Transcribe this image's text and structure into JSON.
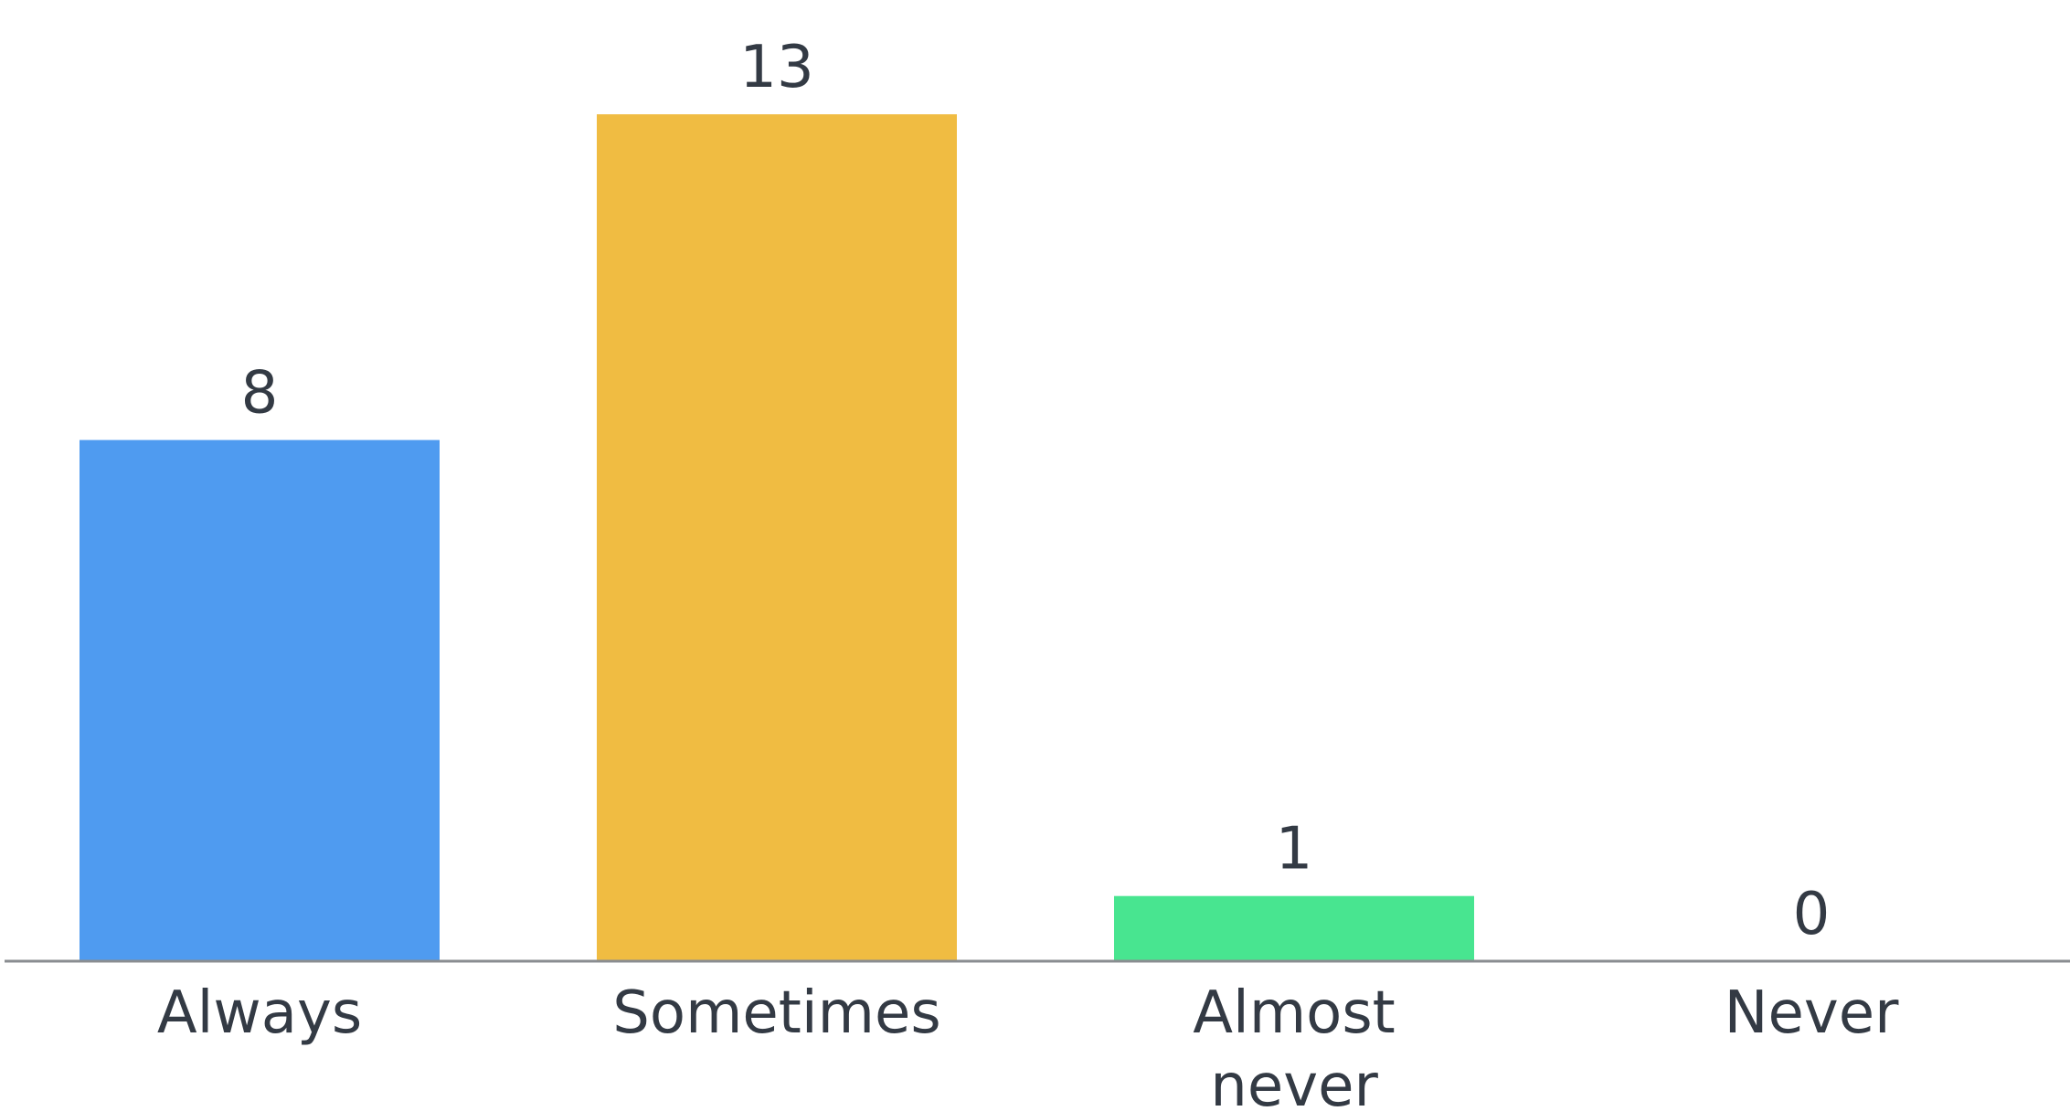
{
  "chart_data": {
    "type": "bar",
    "categories": [
      "Always",
      "Sometimes",
      "Almost never",
      "Never"
    ],
    "category_lines": [
      [
        "Always"
      ],
      [
        "Sometimes"
      ],
      [
        "Almost",
        "never"
      ],
      [
        "Never"
      ]
    ],
    "values": [
      8,
      13,
      1,
      0
    ],
    "colors": [
      "#4f9bf0",
      "#f0bc42",
      "#48e590",
      "#4f9bf0"
    ],
    "title": "",
    "xlabel": "",
    "ylabel": "",
    "ylim": [
      0,
      13
    ],
    "grid": false,
    "legend": "none",
    "data_labels": true
  }
}
